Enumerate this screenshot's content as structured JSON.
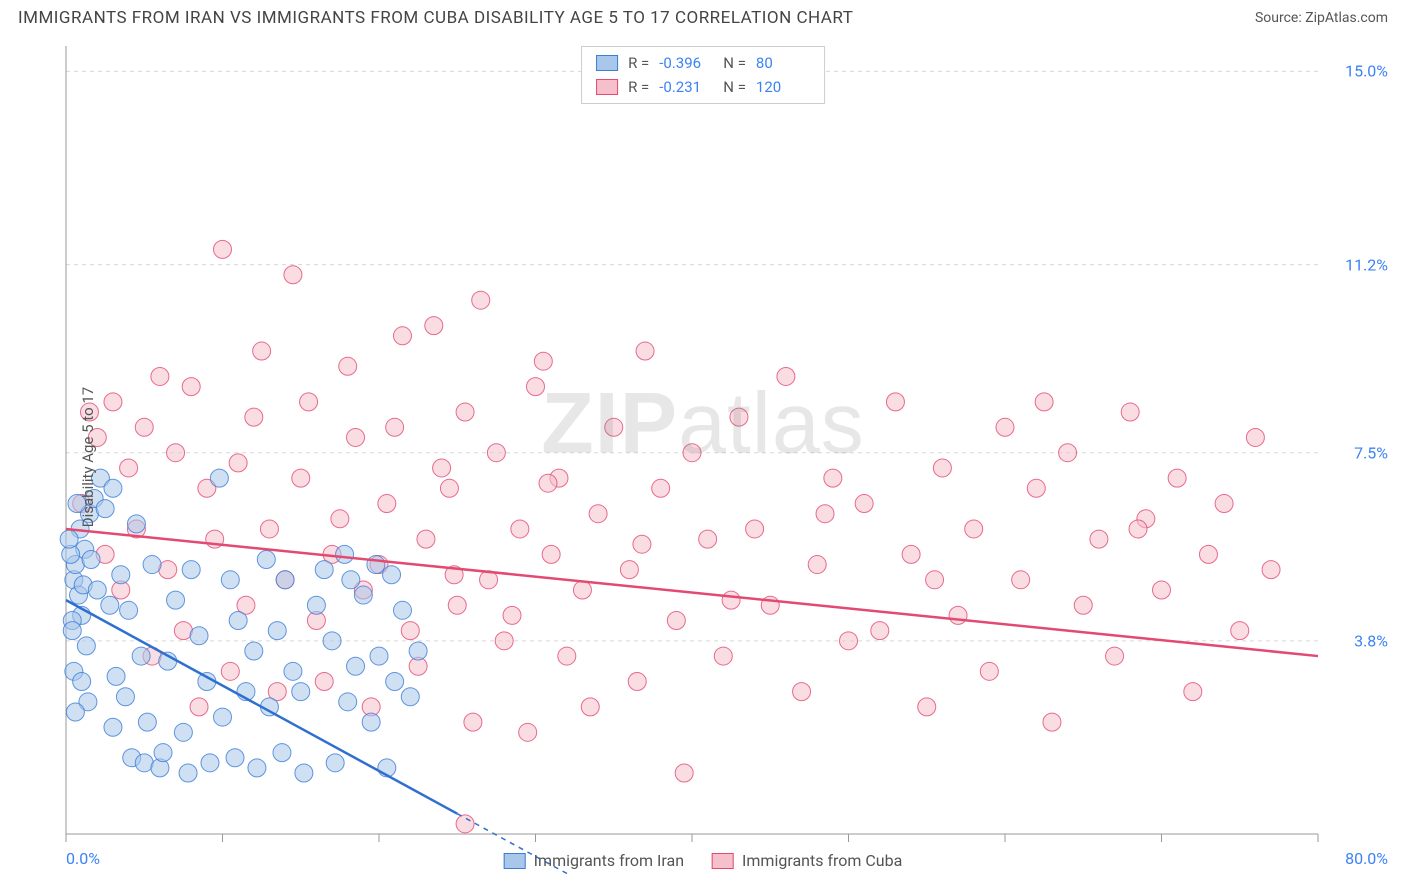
{
  "header": {
    "title": "IMMIGRANTS FROM IRAN VS IMMIGRANTS FROM CUBA DISABILITY AGE 5 TO 17 CORRELATION CHART",
    "source_prefix": "Source: ",
    "source_name": "ZipAtlas.com"
  },
  "watermark": {
    "zip": "ZIP",
    "atlas": "atlas"
  },
  "chart": {
    "type": "scatter",
    "background_color": "#ffffff",
    "grid_color": "#d8d8d8",
    "axis_color": "#999999",
    "legend_border_color": "#cccccc",
    "axis_label_color": "#3b82f6",
    "text_color": "#555555",
    "ylabel": "Disability Age 5 to 17",
    "xlim": [
      0,
      80
    ],
    "ylim": [
      0,
      15.5
    ],
    "x_ticks": [
      0,
      10,
      20,
      30,
      40,
      50,
      60,
      70,
      80
    ],
    "y_gridlines": [
      3.8,
      7.5,
      11.2,
      15.0
    ],
    "y_tick_labels": [
      "3.8%",
      "7.5%",
      "11.2%",
      "15.0%"
    ],
    "x_min_label": "0.0%",
    "x_max_label": "80.0%",
    "marker_radius": 9,
    "marker_opacity": 0.55,
    "line_width": 2.5,
    "series": [
      {
        "name": "Immigrants from Iran",
        "fill": "#a9c7ea",
        "stroke": "#3b7dd8",
        "line_color": "#2f6fd0",
        "r_label": "R =",
        "r_value": "-0.396",
        "n_label": "N =",
        "n_value": "80",
        "trend": {
          "x1": 0,
          "y1": 4.6,
          "x2": 25,
          "y2": 0.4,
          "dash_from_x": 25,
          "dash_to_x": 35
        },
        "points": [
          [
            0.5,
            5.0
          ],
          [
            0.8,
            4.7
          ],
          [
            0.6,
            5.3
          ],
          [
            1.0,
            4.3
          ],
          [
            1.2,
            5.6
          ],
          [
            0.4,
            4.2
          ],
          [
            0.9,
            6.0
          ],
          [
            1.5,
            6.3
          ],
          [
            0.3,
            5.5
          ],
          [
            0.7,
            6.5
          ],
          [
            1.1,
            4.9
          ],
          [
            0.2,
            5.8
          ],
          [
            1.3,
            3.7
          ],
          [
            1.8,
            6.6
          ],
          [
            1.6,
            5.4
          ],
          [
            2.0,
            4.8
          ],
          [
            0.5,
            3.2
          ],
          [
            1.0,
            3.0
          ],
          [
            1.4,
            2.6
          ],
          [
            0.6,
            2.4
          ],
          [
            2.2,
            7.0
          ],
          [
            2.5,
            6.4
          ],
          [
            3.0,
            6.8
          ],
          [
            2.8,
            4.5
          ],
          [
            3.2,
            3.1
          ],
          [
            3.5,
            5.1
          ],
          [
            3.0,
            2.1
          ],
          [
            3.8,
            2.7
          ],
          [
            4.0,
            4.4
          ],
          [
            4.5,
            6.1
          ],
          [
            4.2,
            1.5
          ],
          [
            5.0,
            1.4
          ],
          [
            4.8,
            3.5
          ],
          [
            5.5,
            5.3
          ],
          [
            6.0,
            1.3
          ],
          [
            5.2,
            2.2
          ],
          [
            6.5,
            3.4
          ],
          [
            7.0,
            4.6
          ],
          [
            6.2,
            1.6
          ],
          [
            7.5,
            2.0
          ],
          [
            8.0,
            5.2
          ],
          [
            7.8,
            1.2
          ],
          [
            8.5,
            3.9
          ],
          [
            9.0,
            3.0
          ],
          [
            9.2,
            1.4
          ],
          [
            9.8,
            7.0
          ],
          [
            10.0,
            2.3
          ],
          [
            10.5,
            5.0
          ],
          [
            11.0,
            4.2
          ],
          [
            10.8,
            1.5
          ],
          [
            11.5,
            2.8
          ],
          [
            12.0,
            3.6
          ],
          [
            12.2,
            1.3
          ],
          [
            12.8,
            5.4
          ],
          [
            13.0,
            2.5
          ],
          [
            13.5,
            4.0
          ],
          [
            14.0,
            5.0
          ],
          [
            13.8,
            1.6
          ],
          [
            14.5,
            3.2
          ],
          [
            15.0,
            2.8
          ],
          [
            15.2,
            1.2
          ],
          [
            16.0,
            4.5
          ],
          [
            16.5,
            5.2
          ],
          [
            17.0,
            3.8
          ],
          [
            17.2,
            1.4
          ],
          [
            18.0,
            2.6
          ],
          [
            18.5,
            3.3
          ],
          [
            19.0,
            4.7
          ],
          [
            19.5,
            2.2
          ],
          [
            20.0,
            3.5
          ],
          [
            20.5,
            1.3
          ],
          [
            21.0,
            3.0
          ],
          [
            21.5,
            4.4
          ],
          [
            22.0,
            2.7
          ],
          [
            22.5,
            3.6
          ],
          [
            17.8,
            5.5
          ],
          [
            19.8,
            5.3
          ],
          [
            18.2,
            5.0
          ],
          [
            20.8,
            5.1
          ],
          [
            0.4,
            4.0
          ]
        ]
      },
      {
        "name": "Immigrants from Cuba",
        "fill": "#f5c0cc",
        "stroke": "#e24a72",
        "line_color": "#e24a72",
        "r_label": "R =",
        "r_value": "-0.231",
        "n_label": "N =",
        "n_value": "120",
        "trend": {
          "x1": 0,
          "y1": 6.0,
          "x2": 80,
          "y2": 3.5,
          "dash_from_x": 80,
          "dash_to_x": 80
        },
        "points": [
          [
            1.0,
            6.5
          ],
          [
            2.0,
            7.8
          ],
          [
            1.5,
            8.3
          ],
          [
            3.0,
            8.5
          ],
          [
            2.5,
            5.5
          ],
          [
            4.0,
            7.2
          ],
          [
            3.5,
            4.8
          ],
          [
            5.0,
            8.0
          ],
          [
            4.5,
            6.0
          ],
          [
            6.0,
            9.0
          ],
          [
            5.5,
            3.5
          ],
          [
            7.0,
            7.5
          ],
          [
            6.5,
            5.2
          ],
          [
            8.0,
            8.8
          ],
          [
            7.5,
            4.0
          ],
          [
            9.0,
            6.8
          ],
          [
            8.5,
            2.5
          ],
          [
            10.0,
            11.5
          ],
          [
            9.5,
            5.8
          ],
          [
            11.0,
            7.3
          ],
          [
            10.5,
            3.2
          ],
          [
            12.0,
            8.2
          ],
          [
            11.5,
            4.5
          ],
          [
            13.0,
            6.0
          ],
          [
            12.5,
            9.5
          ],
          [
            14.0,
            5.0
          ],
          [
            13.5,
            2.8
          ],
          [
            15.0,
            7.0
          ],
          [
            14.5,
            11.0
          ],
          [
            16.0,
            4.2
          ],
          [
            15.5,
            8.5
          ],
          [
            17.0,
            5.5
          ],
          [
            16.5,
            3.0
          ],
          [
            18.0,
            9.2
          ],
          [
            17.5,
            6.2
          ],
          [
            19.0,
            4.8
          ],
          [
            18.5,
            7.8
          ],
          [
            20.0,
            5.3
          ],
          [
            19.5,
            2.5
          ],
          [
            21.0,
            8.0
          ],
          [
            20.5,
            6.5
          ],
          [
            22.0,
            4.0
          ],
          [
            21.5,
            9.8
          ],
          [
            23.0,
            5.8
          ],
          [
            22.5,
            3.3
          ],
          [
            24.0,
            7.2
          ],
          [
            23.5,
            10.0
          ],
          [
            25.0,
            4.5
          ],
          [
            24.5,
            6.8
          ],
          [
            26.0,
            2.2
          ],
          [
            25.5,
            8.3
          ],
          [
            27.0,
            5.0
          ],
          [
            26.5,
            10.5
          ],
          [
            28.0,
            3.8
          ],
          [
            27.5,
            7.5
          ],
          [
            29.0,
            6.0
          ],
          [
            28.5,
            4.3
          ],
          [
            30.0,
            8.8
          ],
          [
            29.5,
            2.0
          ],
          [
            31.0,
            5.5
          ],
          [
            30.5,
            9.3
          ],
          [
            32.0,
            3.5
          ],
          [
            31.5,
            7.0
          ],
          [
            33.0,
            4.8
          ],
          [
            34.0,
            6.3
          ],
          [
            33.5,
            2.5
          ],
          [
            35.0,
            8.0
          ],
          [
            36.0,
            5.2
          ],
          [
            37.0,
            9.5
          ],
          [
            36.5,
            3.0
          ],
          [
            38.0,
            6.8
          ],
          [
            39.0,
            4.2
          ],
          [
            40.0,
            7.5
          ],
          [
            39.5,
            1.2
          ],
          [
            41.0,
            5.8
          ],
          [
            42.0,
            3.5
          ],
          [
            43.0,
            8.2
          ],
          [
            44.0,
            6.0
          ],
          [
            45.0,
            4.5
          ],
          [
            46.0,
            9.0
          ],
          [
            47.0,
            2.8
          ],
          [
            48.0,
            5.3
          ],
          [
            49.0,
            7.0
          ],
          [
            50.0,
            3.8
          ],
          [
            51.0,
            6.5
          ],
          [
            52.0,
            4.0
          ],
          [
            53.0,
            8.5
          ],
          [
            54.0,
            5.5
          ],
          [
            55.0,
            2.5
          ],
          [
            56.0,
            7.2
          ],
          [
            57.0,
            4.3
          ],
          [
            58.0,
            6.0
          ],
          [
            59.0,
            3.2
          ],
          [
            60.0,
            8.0
          ],
          [
            61.0,
            5.0
          ],
          [
            62.0,
            6.8
          ],
          [
            63.0,
            2.2
          ],
          [
            64.0,
            7.5
          ],
          [
            65.0,
            4.5
          ],
          [
            66.0,
            5.8
          ],
          [
            67.0,
            3.5
          ],
          [
            68.0,
            8.3
          ],
          [
            69.0,
            6.2
          ],
          [
            70.0,
            4.8
          ],
          [
            71.0,
            7.0
          ],
          [
            72.0,
            2.8
          ],
          [
            73.0,
            5.5
          ],
          [
            74.0,
            6.5
          ],
          [
            75.0,
            4.0
          ],
          [
            76.0,
            7.8
          ],
          [
            77.0,
            5.2
          ],
          [
            68.5,
            6.0
          ],
          [
            62.5,
            8.5
          ],
          [
            55.5,
            5.0
          ],
          [
            48.5,
            6.3
          ],
          [
            42.5,
            4.6
          ],
          [
            36.8,
            5.7
          ],
          [
            30.8,
            6.9
          ],
          [
            24.8,
            5.1
          ],
          [
            25.5,
            0.2
          ]
        ]
      }
    ]
  },
  "legend_bottom": {
    "items": [
      "Immigrants from Iran",
      "Immigrants from Cuba"
    ]
  }
}
